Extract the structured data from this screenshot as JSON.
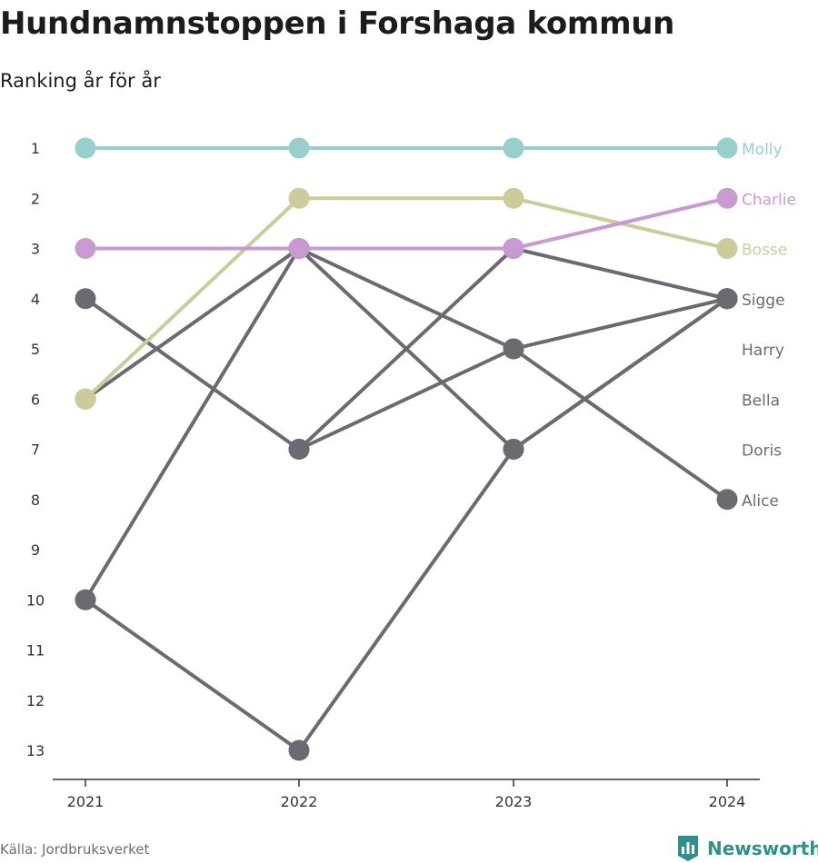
{
  "header": {
    "title": "Hundnamnstoppen i Forshaga kommun",
    "subtitle": "Ranking år för år"
  },
  "footer": {
    "source": "Källa: Jordbruksverket",
    "brand": "Newsworthy"
  },
  "colors": {
    "Molly": "#96cfcc",
    "Charlie": "#c999d1",
    "Bosse": "#cbcc99",
    "other": "#6b6a71",
    "axis": "#333333",
    "brand": "#2f8f8a"
  },
  "chart_data": {
    "type": "line",
    "variant": "bump",
    "x": [
      "2021",
      "2022",
      "2023",
      "2024"
    ],
    "y_ticks": [
      "1",
      "2",
      "3",
      "4",
      "5",
      "6",
      "7",
      "8",
      "9",
      "10",
      "11",
      "12",
      "13"
    ],
    "ylim": [
      1,
      13
    ],
    "y_inverted": true,
    "grid": false,
    "labels_at_end": true,
    "series": [
      {
        "name": "Alice",
        "values": [
          4,
          7,
          5,
          8
        ]
      },
      {
        "name": "Doris",
        "values": [
          10,
          3,
          7,
          4
        ]
      },
      {
        "name": "Bella",
        "values": [
          6,
          3,
          5,
          4
        ]
      },
      {
        "name": "Harry",
        "values": [
          10,
          13,
          7,
          4
        ]
      },
      {
        "name": "Sigge",
        "values": [
          null,
          7,
          3,
          4
        ]
      },
      {
        "name": "Bosse",
        "values": [
          6,
          2,
          2,
          3
        ]
      },
      {
        "name": "Charlie",
        "values": [
          3,
          3,
          3,
          2
        ]
      },
      {
        "name": "Molly",
        "values": [
          1,
          1,
          1,
          1
        ]
      }
    ],
    "end_label_order": [
      "Molly",
      "Charlie",
      "Bosse",
      "Sigge",
      "Harry",
      "Bella",
      "Doris",
      "Alice"
    ]
  }
}
